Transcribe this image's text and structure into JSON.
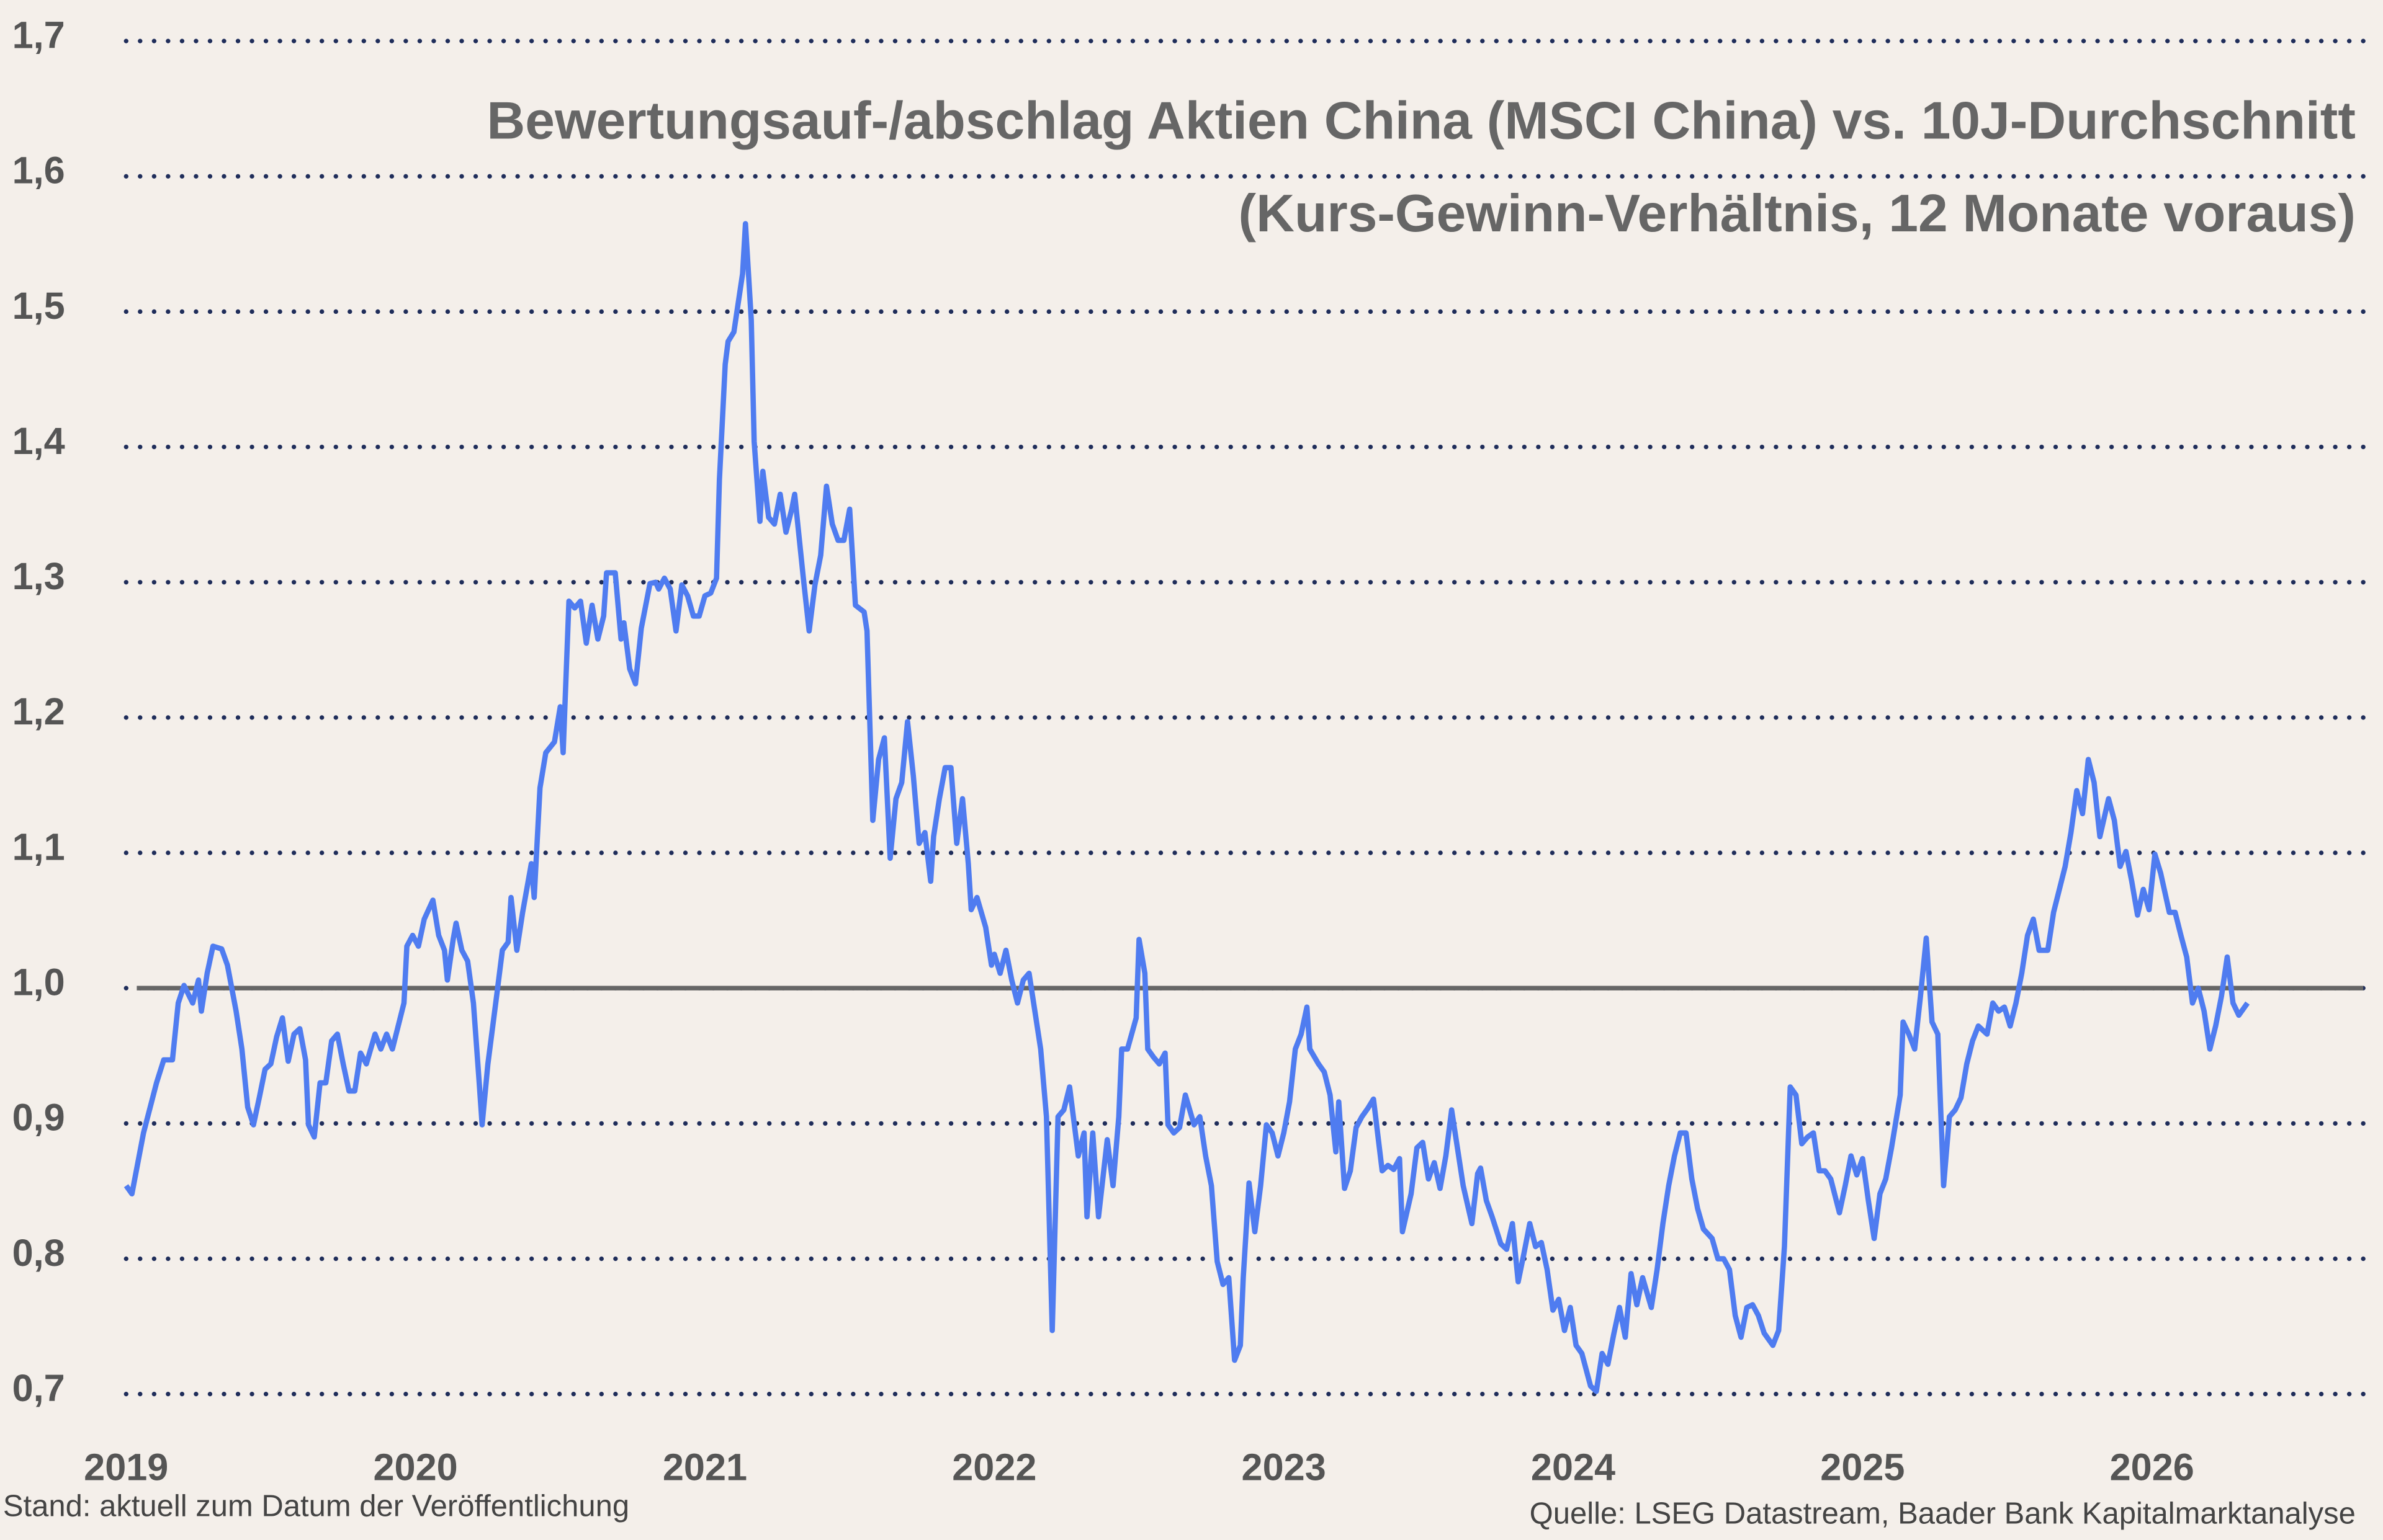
{
  "chart_data": {
    "type": "line",
    "title": "Bewertungsauf-/abschlag Aktien China (MSCI China) vs. 10J-Durchschnitt",
    "subtitle": "(Kurs-Gewinn-Verhältnis, 12 Monate voraus)",
    "note": "Stand: aktuell zum Datum der Veröffentlichung",
    "source": "Quelle: LSEG Datastream, Baader Bank Kapitalmarktanalyse",
    "color": "#4f7cf0",
    "reference_line": 1.0,
    "reference_color": "#666666",
    "grid": true,
    "xlim": [
      2019,
      2026.73
    ],
    "ylim": [
      0.7,
      1.7
    ],
    "xticks": [
      2019,
      2020,
      2021,
      2022,
      2023,
      2024,
      2025,
      2026
    ],
    "yticks": [
      {
        "value": 0.7,
        "label": "0,7"
      },
      {
        "value": 0.8,
        "label": "0,8"
      },
      {
        "value": 0.9,
        "label": "0,9"
      },
      {
        "value": 1.0,
        "label": "1,0"
      },
      {
        "value": 1.1,
        "label": "1,1"
      },
      {
        "value": 1.2,
        "label": "1,2"
      },
      {
        "value": 1.3,
        "label": "1,3"
      },
      {
        "value": 1.4,
        "label": "1,4"
      },
      {
        "value": 1.5,
        "label": "1,5"
      },
      {
        "value": 1.6,
        "label": "1,6"
      },
      {
        "value": 1.7,
        "label": "1,7"
      }
    ],
    "x": [
      2019.0,
      2019.02,
      2019.06,
      2019.105,
      2019.13,
      2019.16,
      2019.18,
      2019.2,
      2019.23,
      2019.25,
      2019.26,
      2019.28,
      2019.3,
      2019.33,
      2019.35,
      2019.38,
      2019.4,
      2019.42,
      2019.44,
      2019.46,
      2019.48,
      2019.5,
      2019.52,
      2019.54,
      2019.56,
      2019.58,
      2019.6,
      2019.62,
      2019.63,
      2019.65,
      2019.67,
      2019.69,
      2019.71,
      2019.73,
      2019.75,
      2019.77,
      2019.79,
      2019.81,
      2019.83,
      2019.86,
      2019.88,
      2019.9,
      2019.92,
      2019.94,
      2019.96,
      2019.97,
      2019.99,
      2020.01,
      2020.03,
      2020.06,
      2020.08,
      2020.1,
      2020.11,
      2020.13,
      2020.14,
      2020.16,
      2020.18,
      2020.2,
      2020.22,
      2020.23,
      2020.25,
      2020.28,
      2020.3,
      2020.32,
      2020.33,
      2020.35,
      2020.37,
      2020.4,
      2020.41,
      2020.43,
      2020.45,
      2020.48,
      2020.5,
      2020.51,
      2020.53,
      2020.55,
      2020.57,
      2020.59,
      2020.61,
      2020.63,
      2020.65,
      2020.66,
      2020.69,
      2020.71,
      2020.72,
      2020.74,
      2020.76,
      2020.78,
      2020.81,
      2020.83,
      2020.84,
      2020.86,
      2020.88,
      2020.9,
      2020.92,
      2020.94,
      2020.96,
      2020.98,
      2021.0,
      2021.02,
      2021.04,
      2021.05,
      2021.07,
      2021.08,
      2021.1,
      2021.13,
      2021.14,
      2021.16,
      2021.17,
      2021.19,
      2021.2,
      2021.22,
      2021.24,
      2021.26,
      2021.28,
      2021.3,
      2021.31,
      2021.34,
      2021.36,
      2021.38,
      2021.4,
      2021.42,
      2021.44,
      2021.46,
      2021.48,
      2021.5,
      2021.52,
      2021.55,
      2021.56,
      2021.58,
      2021.6,
      2021.62,
      2021.64,
      2021.66,
      2021.68,
      2021.7,
      2021.72,
      2021.74,
      2021.76,
      2021.78,
      2021.79,
      2021.81,
      2021.83,
      2021.85,
      2021.87,
      2021.89,
      2021.91,
      2021.92,
      2021.94,
      2021.97,
      2021.99,
      2022.0,
      2022.02,
      2022.04,
      2022.06,
      2022.08,
      2022.1,
      2022.12,
      2022.14,
      2022.16,
      2022.18,
      2022.2,
      2022.22,
      2022.24,
      2022.26,
      2022.29,
      2022.31,
      2022.32,
      2022.34,
      2022.36,
      2022.39,
      2022.41,
      2022.43,
      2022.44,
      2022.46,
      2022.49,
      2022.5,
      2022.52,
      2022.53,
      2022.55,
      2022.57,
      2022.59,
      2022.6,
      2022.62,
      2022.64,
      2022.66,
      2022.69,
      2022.71,
      2022.73,
      2022.75,
      2022.77,
      2022.79,
      2022.81,
      2022.83,
      2022.85,
      2022.86,
      2022.88,
      2022.9,
      2022.92,
      2022.94,
      2022.96,
      2022.98,
      2023.0,
      2023.02,
      2023.04,
      2023.06,
      2023.08,
      2023.09,
      2023.12,
      2023.14,
      2023.16,
      2023.18,
      2023.19,
      2023.21,
      2023.23,
      2023.25,
      2023.27,
      2023.29,
      2023.31,
      2023.34,
      2023.36,
      2023.38,
      2023.4,
      2023.41,
      2023.44,
      2023.46,
      2023.48,
      2023.5,
      2023.52,
      2023.54,
      2023.56,
      2023.58,
      2023.6,
      2023.62,
      2023.65,
      2023.67,
      2023.68,
      2023.7,
      2023.72,
      2023.75,
      2023.77,
      2023.79,
      2023.81,
      2023.83,
      2023.85,
      2023.87,
      2023.89,
      2023.91,
      2023.93,
      2023.95,
      2023.97,
      2023.99,
      2024.01,
      2024.03,
      2024.06,
      2024.08,
      2024.1,
      2024.12,
      2024.14,
      2024.16,
      2024.18,
      2024.2,
      2024.22,
      2024.24,
      2024.27,
      2024.29,
      2024.31,
      2024.33,
      2024.35,
      2024.37,
      2024.39,
      2024.41,
      2024.43,
      2024.45,
      2024.48,
      2024.5,
      2024.52,
      2024.54,
      2024.56,
      2024.58,
      2024.6,
      2024.62,
      2024.64,
      2024.66,
      2024.69,
      2024.71,
      2024.73,
      2024.75,
      2024.77,
      2024.79,
      2024.81,
      2024.83,
      2024.85,
      2024.87,
      2024.89,
      2024.92,
      2024.94,
      2024.96,
      2024.98,
      2025.0,
      2025.02,
      2025.04,
      2025.06,
      2025.08,
      2025.1,
      2025.13,
      2025.14,
      2025.16,
      2025.18,
      2025.2,
      2025.22,
      2025.24,
      2025.26,
      2025.28,
      2025.3,
      2025.32,
      2025.34,
      2025.36,
      2025.38,
      2025.4,
      2025.43,
      2025.45,
      2025.47,
      2025.49,
      2025.51,
      2025.53,
      2025.55,
      2025.57,
      2025.59,
      2025.61,
      2025.64,
      2025.66,
      2025.68,
      2025.7,
      2025.72,
      2025.74,
      2025.76,
      2025.78,
      2025.8,
      2025.82,
      2025.85,
      2025.87,
      2025.89,
      2025.91,
      2025.93,
      2025.95,
      2025.97,
      2025.99,
      2026.01,
      2026.03,
      2026.06,
      2026.08,
      2026.1,
      2026.12,
      2026.14,
      2026.16,
      2026.18,
      2026.2,
      2026.22,
      2026.24,
      2026.26,
      2026.28,
      2026.3,
      2026.33
    ],
    "values": [
      0.854,
      0.848,
      0.893,
      0.93,
      0.947,
      0.947,
      0.989,
      1.002,
      0.989,
      1.006,
      0.983,
      1.011,
      1.031,
      1.029,
      1.017,
      0.983,
      0.955,
      0.912,
      0.899,
      0.919,
      0.94,
      0.944,
      0.964,
      0.978,
      0.946,
      0.966,
      0.97,
      0.947,
      0.899,
      0.89,
      0.93,
      0.93,
      0.961,
      0.966,
      0.944,
      0.924,
      0.924,
      0.952,
      0.944,
      0.966,
      0.955,
      0.966,
      0.955,
      0.972,
      0.989,
      1.031,
      1.039,
      1.031,
      1.051,
      1.065,
      1.039,
      1.028,
      1.006,
      1.036,
      1.048,
      1.028,
      1.02,
      0.989,
      0.93,
      0.899,
      0.944,
      0.994,
      1.028,
      1.034,
      1.067,
      1.028,
      1.056,
      1.092,
      1.067,
      1.148,
      1.174,
      1.182,
      1.208,
      1.174,
      1.286,
      1.281,
      1.286,
      1.255,
      1.283,
      1.258,
      1.275,
      1.307,
      1.307,
      1.258,
      1.27,
      1.236,
      1.225,
      1.266,
      1.299,
      1.3,
      1.295,
      1.303,
      1.295,
      1.264,
      1.298,
      1.29,
      1.275,
      1.275,
      1.29,
      1.292,
      1.303,
      1.376,
      1.461,
      1.478,
      1.485,
      1.528,
      1.565,
      1.494,
      1.404,
      1.345,
      1.382,
      1.348,
      1.343,
      1.365,
      1.337,
      1.354,
      1.365,
      1.303,
      1.264,
      1.298,
      1.32,
      1.371,
      1.343,
      1.331,
      1.331,
      1.354,
      1.283,
      1.278,
      1.264,
      1.124,
      1.169,
      1.185,
      1.096,
      1.14,
      1.152,
      1.197,
      1.157,
      1.107,
      1.115,
      1.079,
      1.112,
      1.14,
      1.163,
      1.163,
      1.107,
      1.14,
      1.092,
      1.058,
      1.067,
      1.045,
      1.017,
      1.025,
      1.011,
      1.028,
      1.006,
      0.989,
      1.006,
      1.011,
      0.983,
      0.955,
      0.905,
      0.747,
      0.905,
      0.91,
      0.927,
      0.876,
      0.893,
      0.831,
      0.893,
      0.831,
      0.888,
      0.854,
      0.905,
      0.955,
      0.955,
      0.978,
      1.036,
      1.011,
      0.955,
      0.949,
      0.944,
      0.952,
      0.899,
      0.893,
      0.897,
      0.921,
      0.899,
      0.905,
      0.876,
      0.854,
      0.798,
      0.781,
      0.786,
      0.725,
      0.736,
      0.786,
      0.856,
      0.82,
      0.854,
      0.899,
      0.893,
      0.876,
      0.893,
      0.916,
      0.955,
      0.966,
      0.986,
      0.955,
      0.944,
      0.938,
      0.921,
      0.879,
      0.916,
      0.852,
      0.865,
      0.897,
      0.905,
      0.911,
      0.918,
      0.865,
      0.869,
      0.866,
      0.874,
      0.82,
      0.848,
      0.882,
      0.886,
      0.859,
      0.871,
      0.852,
      0.876,
      0.91,
      0.882,
      0.854,
      0.826,
      0.863,
      0.867,
      0.843,
      0.831,
      0.811,
      0.807,
      0.826,
      0.783,
      0.804,
      0.826,
      0.809,
      0.812,
      0.792,
      0.762,
      0.77,
      0.747,
      0.764,
      0.736,
      0.73,
      0.706,
      0.702,
      0.73,
      0.722,
      0.744,
      0.764,
      0.742,
      0.789,
      0.766,
      0.786,
      0.764,
      0.792,
      0.826,
      0.854,
      0.876,
      0.893,
      0.893,
      0.859,
      0.837,
      0.822,
      0.815,
      0.8,
      0.8,
      0.792,
      0.758,
      0.742,
      0.764,
      0.766,
      0.758,
      0.745,
      0.736,
      0.747,
      0.809,
      0.927,
      0.921,
      0.885,
      0.89,
      0.893,
      0.865,
      0.865,
      0.859,
      0.834,
      0.854,
      0.876,
      0.862,
      0.874,
      0.843,
      0.815,
      0.848,
      0.859,
      0.882,
      0.921,
      0.975,
      0.966,
      0.955,
      0.994,
      1.037,
      0.975,
      0.966,
      0.854,
      0.905,
      0.91,
      0.919,
      0.944,
      0.961,
      0.972,
      0.966,
      0.989,
      0.983,
      0.986,
      0.972,
      0.989,
      1.011,
      1.039,
      1.051,
      1.028,
      1.028,
      1.056,
      1.073,
      1.09,
      1.115,
      1.146,
      1.129,
      1.169,
      1.152,
      1.112,
      1.14,
      1.124,
      1.09,
      1.101,
      1.079,
      1.054,
      1.073,
      1.058,
      1.099,
      1.085,
      1.056,
      1.056,
      1.039,
      1.023,
      0.989,
      1.0,
      0.983,
      0.955,
      0.972,
      0.994,
      1.023,
      0.989,
      0.98,
      0.989
    ]
  }
}
